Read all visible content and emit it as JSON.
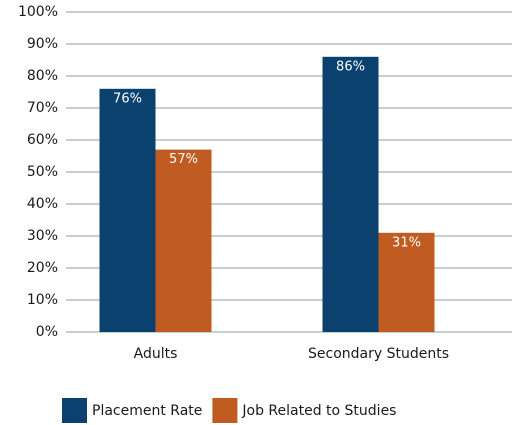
{
  "chart_data": {
    "type": "bar",
    "categories": [
      "Adults",
      "Secondary Students"
    ],
    "series": [
      {
        "name": "Placement Rate",
        "color": "#0b416e",
        "values": [
          76,
          86
        ],
        "value_labels": [
          "76%",
          "86%"
        ]
      },
      {
        "name": "Job Related to Studies",
        "color": "#c05b21",
        "values": [
          57,
          31
        ],
        "value_labels": [
          "57%",
          "31%"
        ]
      }
    ],
    "ylim": [
      0,
      100
    ],
    "yticks": [
      {
        "value": 0,
        "label": "0%"
      },
      {
        "value": 10,
        "label": "10%"
      },
      {
        "value": 20,
        "label": "20%"
      },
      {
        "value": 30,
        "label": "30%"
      },
      {
        "value": 40,
        "label": "40%"
      },
      {
        "value": 50,
        "label": "50%"
      },
      {
        "value": 60,
        "label": "60%"
      },
      {
        "value": 70,
        "label": "70%"
      },
      {
        "value": 80,
        "label": "80%"
      },
      {
        "value": 90,
        "label": "90%"
      },
      {
        "value": 100,
        "label": "100%"
      }
    ],
    "grid": true,
    "legend": "bottom"
  }
}
